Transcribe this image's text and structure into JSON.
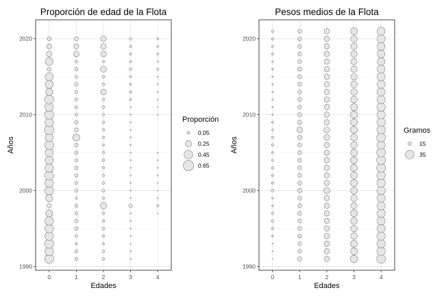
{
  "chart_data": [
    {
      "type": "scatter",
      "title": "Proporción de edad de la Flota",
      "xlabel": "Edades",
      "ylabel": "Años",
      "x_ticks": [
        "0",
        "1",
        "2",
        "3",
        "4"
      ],
      "y_ticks": [
        "1990",
        "2000",
        "2010",
        "2020"
      ],
      "xlim": [
        -0.5,
        4.5
      ],
      "ylim": [
        1989.5,
        2022.5
      ],
      "grid": true,
      "legend": {
        "title": "Proporción",
        "position": "right",
        "entries": [
          {
            "label": "0.05",
            "value": 0.05
          },
          {
            "label": "0.25",
            "value": 0.25
          },
          {
            "label": "0.45",
            "value": 0.45
          },
          {
            "label": "0.65",
            "value": 0.65
          }
        ]
      },
      "colors": {
        "fill": "#e6e6e6",
        "stroke": "#7f7f7f"
      },
      "years": [
        1991,
        1992,
        1993,
        1994,
        1995,
        1996,
        1997,
        1998,
        1999,
        2000,
        2001,
        2002,
        2003,
        2004,
        2005,
        2006,
        2007,
        2008,
        2009,
        2010,
        2011,
        2012,
        2013,
        2014,
        2015,
        2016,
        2017,
        2018,
        2019,
        2020
      ],
      "series": [
        {
          "age": 0,
          "values": [
            0.5,
            0.45,
            0.5,
            0.45,
            0.45,
            0.45,
            0.3,
            0.12,
            0.3,
            0.45,
            0.45,
            0.5,
            0.45,
            0.4,
            0.4,
            0.5,
            0.4,
            0.55,
            0.45,
            0.5,
            0.45,
            0.5,
            0.3,
            0.4,
            0.4,
            0.1,
            0.35,
            0.2,
            0.15,
            0.1
          ]
        },
        {
          "age": 1,
          "values": [
            0.06,
            0.06,
            0.04,
            0.05,
            0.08,
            0.07,
            0.06,
            0.06,
            0.04,
            0.07,
            0.06,
            0.07,
            0.07,
            0.06,
            0.07,
            0.08,
            0.3,
            0.1,
            0.08,
            0.05,
            0.06,
            0.06,
            0.06,
            0.08,
            0.06,
            0.07,
            0.05,
            0.2,
            0.15,
            0.1
          ]
        },
        {
          "age": 2,
          "values": [
            0.05,
            0.04,
            0.03,
            0.04,
            0.05,
            0.04,
            0.04,
            0.25,
            0.03,
            0.06,
            0.04,
            0.04,
            0.03,
            0.05,
            0.04,
            0.04,
            0.03,
            0.04,
            0.04,
            0.04,
            0.05,
            0.04,
            0.2,
            0.05,
            0.05,
            0.22,
            0.04,
            0.2,
            0.2,
            0.2
          ]
        },
        {
          "age": 3,
          "values": [
            0.01,
            0.01,
            0.01,
            0.01,
            0.01,
            0.01,
            0.01,
            0.08,
            0.01,
            0.01,
            0.01,
            0.01,
            0.01,
            0.01,
            0.01,
            0.01,
            0.01,
            0.01,
            0.01,
            0.01,
            0.01,
            0.02,
            0.03,
            0.02,
            0.03,
            0.04,
            0.03,
            0.03,
            0.04,
            0.05
          ]
        },
        {
          "age": 4,
          "values": [
            0,
            0,
            0,
            0,
            0,
            0,
            0.005,
            0.04,
            0.008,
            0.005,
            0.005,
            0.008,
            0.008,
            0.005,
            0.008,
            0,
            0,
            0,
            0,
            0.008,
            0.005,
            0.008,
            0.01,
            0.008,
            0.008,
            0.02,
            0.01,
            0.02,
            0.02,
            0.02
          ]
        }
      ]
    },
    {
      "type": "scatter",
      "title": "Pesos medios de la Flota",
      "xlabel": "Edades",
      "ylabel": "Años",
      "x_ticks": [
        "0",
        "1",
        "2",
        "3",
        "4"
      ],
      "y_ticks": [
        "1990",
        "2000",
        "2010",
        "2020"
      ],
      "xlim": [
        -0.5,
        4.5
      ],
      "ylim": [
        1989.5,
        2022.5
      ],
      "grid": true,
      "legend": {
        "title": "Gramos",
        "position": "right",
        "entries": [
          {
            "label": "15",
            "value": 15
          },
          {
            "label": "35",
            "value": 35
          }
        ]
      },
      "colors": {
        "fill": "#e6e6e6",
        "stroke": "#7f7f7f"
      },
      "years": [
        1991,
        1992,
        1993,
        1994,
        1995,
        1996,
        1997,
        1998,
        1999,
        2000,
        2001,
        2002,
        2003,
        2004,
        2005,
        2006,
        2007,
        2008,
        2009,
        2010,
        2011,
        2012,
        2013,
        2014,
        2015,
        2016,
        2017,
        2018,
        2019,
        2020,
        2021
      ],
      "series": [
        {
          "age": 0,
          "values": [
            3,
            5,
            5,
            8,
            10,
            12,
            10,
            7,
            7,
            12,
            9,
            9,
            10,
            8,
            8,
            10,
            9,
            7,
            8,
            6,
            6,
            6,
            6,
            6,
            6,
            7,
            7,
            8,
            8,
            10,
            10
          ]
        },
        {
          "age": 1,
          "values": [
            18,
            15,
            15,
            16,
            16,
            16,
            16,
            16,
            16,
            18,
            16,
            16,
            16,
            16,
            16,
            16,
            18,
            23,
            17,
            17,
            16,
            16,
            16,
            16,
            16,
            16,
            16,
            16,
            16,
            16,
            16
          ]
        },
        {
          "age": 2,
          "values": [
            22,
            22,
            22,
            22,
            22,
            22,
            22,
            22,
            22,
            25,
            22,
            22,
            22,
            22,
            22,
            22,
            24,
            24,
            22,
            22,
            22,
            22,
            22,
            22,
            22,
            22,
            22,
            22,
            22,
            22,
            22
          ]
        },
        {
          "age": 3,
          "values": [
            30,
            28,
            28,
            27,
            27,
            27,
            28,
            26,
            27,
            28,
            28,
            28,
            29,
            28,
            28,
            27,
            28,
            28,
            28,
            30,
            28,
            27,
            27,
            27,
            26,
            26,
            26,
            26,
            26,
            27,
            28
          ]
        },
        {
          "age": 4,
          "values": [
            36,
            34,
            34,
            34,
            33,
            33,
            34,
            33,
            33,
            34,
            34,
            34,
            36,
            36,
            36,
            34,
            36,
            34,
            34,
            34,
            34,
            33,
            33,
            33,
            33,
            32,
            31,
            31,
            32,
            33,
            33
          ]
        }
      ]
    }
  ]
}
